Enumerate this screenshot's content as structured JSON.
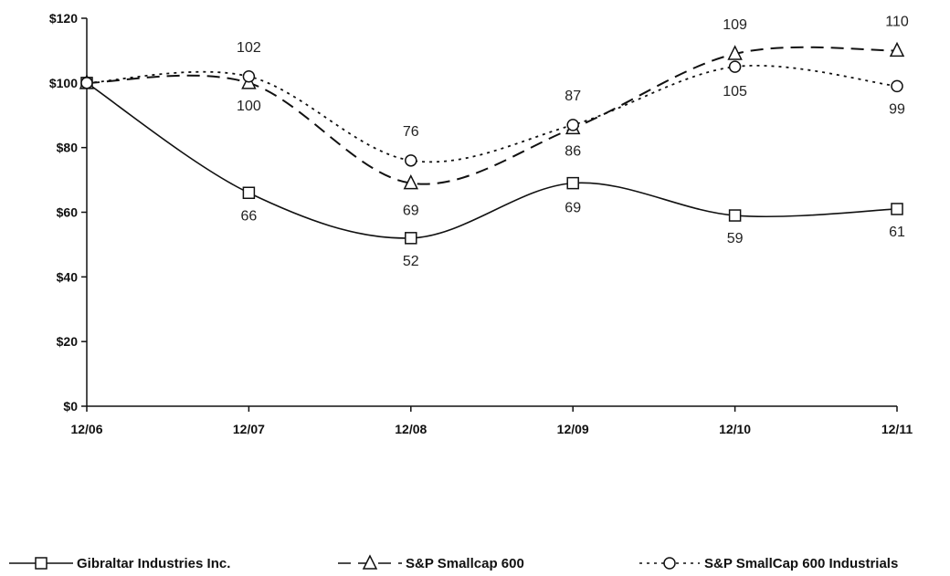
{
  "chart_data": {
    "type": "line",
    "categories": [
      "12/06",
      "12/07",
      "12/08",
      "12/09",
      "12/10",
      "12/11"
    ],
    "ylim": [
      0,
      120
    ],
    "y_ticks": [
      "$0",
      "$20",
      "$40",
      "$60",
      "$80",
      "$100",
      "$120"
    ],
    "grid": false,
    "legend_position": "bottom",
    "series": [
      {
        "name": "Gibraltar Industries Inc.",
        "values": [
          100,
          66,
          52,
          69,
          59,
          61
        ],
        "labels": [
          "",
          "66",
          "52",
          "69",
          "59",
          "61"
        ],
        "marker": "square",
        "dash": "solid",
        "color": "#111111"
      },
      {
        "name": "S&P Smallcap 600",
        "values": [
          100,
          100,
          69,
          86,
          109,
          110
        ],
        "labels": [
          "",
          "100",
          "69",
          "86",
          "109",
          "110"
        ],
        "marker": "triangle",
        "dash": "dashed",
        "color": "#111111"
      },
      {
        "name": "S&P SmallCap 600 Industrials",
        "values": [
          100,
          102,
          76,
          87,
          105,
          99
        ],
        "labels": [
          "",
          "102",
          "76",
          "87",
          "105",
          "99"
        ],
        "marker": "circle",
        "dash": "dotted",
        "color": "#111111"
      }
    ]
  }
}
